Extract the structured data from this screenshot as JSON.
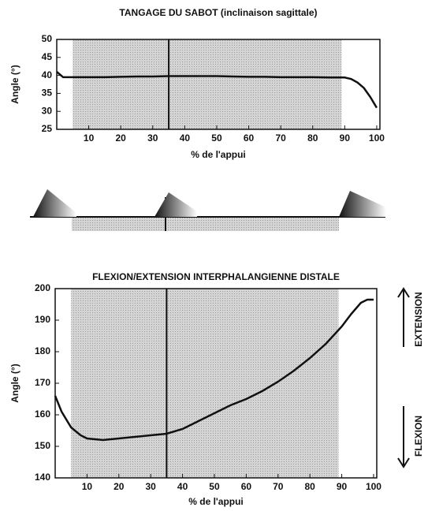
{
  "chart_data": [
    {
      "type": "line",
      "title": "TANGAGE DU SABOT (inclinaison sagittale)",
      "x_label": "% de l'appui",
      "y_label": "Angle (°)",
      "x": [
        0,
        2,
        5,
        10,
        15,
        20,
        25,
        30,
        35,
        40,
        45,
        50,
        55,
        60,
        65,
        70,
        75,
        80,
        85,
        90,
        92,
        94,
        96,
        98,
        100
      ],
      "values": [
        41,
        39.5,
        39.5,
        39.5,
        39.5,
        39.6,
        39.7,
        39.7,
        39.8,
        39.8,
        39.8,
        39.8,
        39.7,
        39.6,
        39.6,
        39.5,
        39.5,
        39.5,
        39.4,
        39.4,
        39,
        38,
        36.5,
        34,
        31
      ],
      "color": "#111111",
      "xlim": [
        0,
        101
      ],
      "ylim": [
        25,
        50
      ],
      "xticks": [
        10,
        20,
        30,
        40,
        50,
        60,
        70,
        80,
        90,
        100
      ],
      "yticks": [
        25,
        30,
        35,
        40,
        45,
        50
      ],
      "shaded_region": [
        5,
        89
      ],
      "vline": 35
    },
    {
      "type": "line",
      "title": "FLEXION/EXTENSION INTERPHALANGIENNE DISTALE",
      "x_label": "% de l'appui",
      "y_label": "Angle (°)",
      "x": [
        0,
        2,
        5,
        8,
        10,
        15,
        20,
        25,
        30,
        35,
        40,
        45,
        50,
        55,
        60,
        65,
        70,
        75,
        80,
        85,
        90,
        93,
        96,
        98,
        100
      ],
      "values": [
        166,
        161,
        156,
        153.5,
        152.5,
        152,
        152.5,
        153,
        153.5,
        154,
        155.5,
        158,
        160.5,
        163,
        165,
        167.5,
        170.5,
        174,
        178,
        182.5,
        188,
        192,
        195.5,
        196.5,
        196.5
      ],
      "color": "#111111",
      "xlim": [
        0,
        101
      ],
      "ylim": [
        140,
        200
      ],
      "xticks": [
        10,
        20,
        30,
        40,
        50,
        60,
        70,
        80,
        90,
        100
      ],
      "yticks": [
        140,
        150,
        160,
        170,
        180,
        190,
        200
      ],
      "shaded_region": [
        5,
        89
      ],
      "vline": 35,
      "annotations": [
        "EXTENSION",
        "FLEXION"
      ]
    }
  ]
}
